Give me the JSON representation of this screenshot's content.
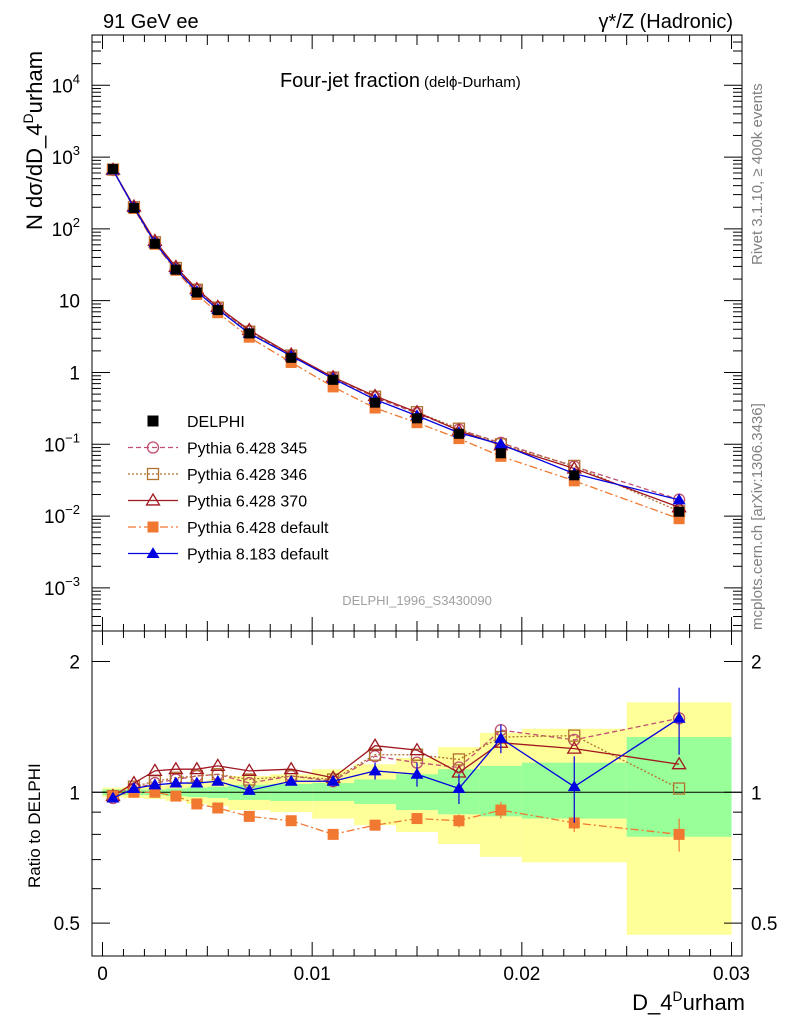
{
  "header": {
    "left": "91 GeV ee",
    "right": "γ*/Z (Hadronic)"
  },
  "title": {
    "main": "Four-jet fraction",
    "sub": "(delϕ-Durham)"
  },
  "side_labels": {
    "rivet": "Rivet 3.1.10, ≥ 400k events",
    "mcplots": "mcplots.cern.ch [arXiv:1306.3436]"
  },
  "watermark": "DELPHI_1996_S3430090",
  "axes": {
    "ylabel_top": "N dσ/dD_4",
    "ylabel_top_sup": "D",
    "ylabel_top_tail": "urham",
    "ylabel_bottom": "Ratio to DELPHI",
    "xlabel": "D_4",
    "xlabel_sup": "D",
    "xlabel_tail": "urham"
  },
  "ticks": {
    "x": [
      {
        "v": 0,
        "label": "0"
      },
      {
        "v": 0.01,
        "label": "0.01"
      },
      {
        "v": 0.02,
        "label": "0.02"
      },
      {
        "v": 0.03,
        "label": "0.03"
      }
    ],
    "y_top": [
      {
        "v": 4,
        "base": "10",
        "sup": "4"
      },
      {
        "v": 3,
        "base": "10",
        "sup": "3"
      },
      {
        "v": 2,
        "base": "10",
        "sup": "2"
      },
      {
        "v": 1,
        "base": "10",
        "sup": ""
      },
      {
        "v": 0,
        "base": "1",
        "sup": ""
      },
      {
        "v": -1,
        "base": "10",
        "sup": "−1"
      },
      {
        "v": -2,
        "base": "10",
        "sup": "−2"
      },
      {
        "v": -3,
        "base": "10",
        "sup": "−3"
      }
    ],
    "y_ratio": [
      {
        "v": 0.5,
        "label": "0.5"
      },
      {
        "v": 1,
        "label": "1"
      },
      {
        "v": 2,
        "label": "2"
      }
    ]
  },
  "legend": [
    {
      "label": "DELPHI"
    },
    {
      "label": "Pythia 6.428 345"
    },
    {
      "label": "Pythia 6.428 346"
    },
    {
      "label": "Pythia 6.428 370"
    },
    {
      "label": "Pythia 6.428 default"
    },
    {
      "label": "Pythia 8.183 default"
    }
  ],
  "chart_data": {
    "type": "line",
    "title": "Four-jet fraction (delϕ-Durham)",
    "xlabel": "D_4^Durham",
    "ylabel": "N dσ/dD_4^Durham",
    "xlim": [
      -0.0005,
      0.0305
    ],
    "ylim_log10": [
      -3.6,
      4.7
    ],
    "ratio_ylim": [
      0.42,
      2.35
    ],
    "x": [
      0.0005,
      0.0015,
      0.0025,
      0.0035,
      0.0045,
      0.0055,
      0.007,
      0.009,
      0.011,
      0.013,
      0.015,
      0.017,
      0.019,
      0.0225,
      0.0275
    ],
    "bin_edges": [
      0,
      0.001,
      0.002,
      0.003,
      0.004,
      0.005,
      0.006,
      0.008,
      0.01,
      0.012,
      0.014,
      0.016,
      0.018,
      0.02,
      0.025,
      0.03
    ],
    "uncertainty_bands": {
      "green_lo": [
        0.985,
        0.985,
        0.985,
        0.98,
        0.975,
        0.97,
        0.96,
        0.955,
        0.955,
        0.94,
        0.91,
        0.89,
        0.88,
        0.87,
        0.79
      ],
      "green_hi": [
        1.015,
        1.015,
        1.015,
        1.02,
        1.025,
        1.03,
        1.04,
        1.045,
        1.05,
        1.07,
        1.1,
        1.13,
        1.15,
        1.17,
        1.34
      ],
      "yellow_lo": [
        0.975,
        0.97,
        0.965,
        0.955,
        0.94,
        0.93,
        0.91,
        0.9,
        0.87,
        0.84,
        0.81,
        0.76,
        0.71,
        0.69,
        0.47
      ],
      "yellow_hi": [
        1.025,
        1.03,
        1.035,
        1.045,
        1.06,
        1.07,
        1.09,
        1.1,
        1.13,
        1.16,
        1.2,
        1.27,
        1.37,
        1.4,
        1.61
      ]
    },
    "series": [
      {
        "name": "DELPHI",
        "color": "#000000",
        "marker": "square-filled",
        "line": "none",
        "values": [
          680,
          195,
          62,
          27,
          13,
          7.4,
          3.5,
          1.6,
          0.79,
          0.38,
          0.23,
          0.14,
          0.075,
          0.037,
          0.0115
        ],
        "ratio": [
          1,
          1,
          1,
          1,
          1,
          1,
          1,
          1,
          1,
          1,
          1,
          1,
          1,
          1,
          1
        ]
      },
      {
        "name": "Pythia 6.428 345",
        "color": "#c05070",
        "marker": "circle-open",
        "line": "dashed",
        "values": [
          660,
          200,
          64,
          28,
          14.3,
          8.0,
          3.8,
          1.7,
          0.85,
          0.45,
          0.27,
          0.16,
          0.105,
          0.049,
          0.017
        ],
        "ratio": [
          0.97,
          1.02,
          1.05,
          1.07,
          1.09,
          1.1,
          1.05,
          1.09,
          1.06,
          1.21,
          1.17,
          1.14,
          1.39,
          1.32,
          1.48
        ]
      },
      {
        "name": "Pythia 6.428 346",
        "color": "#b07030",
        "marker": "square-open",
        "line": "dotted",
        "values": [
          670,
          200,
          65,
          28.5,
          14.2,
          8.0,
          3.7,
          1.72,
          0.85,
          0.46,
          0.28,
          0.165,
          0.1,
          0.05,
          0.0117
        ],
        "ratio": [
          0.98,
          1.03,
          1.06,
          1.08,
          1.09,
          1.1,
          1.07,
          1.09,
          1.07,
          1.22,
          1.22,
          1.19,
          1.34,
          1.35,
          1.02
        ]
      },
      {
        "name": "Pythia 6.428 370",
        "color": "#a01820",
        "marker": "triangle-open",
        "line": "solid",
        "values": [
          665,
          205,
          68,
          29.5,
          14.5,
          8.2,
          3.9,
          1.78,
          0.86,
          0.47,
          0.28,
          0.155,
          0.097,
          0.046,
          0.0133
        ],
        "ratio": [
          0.98,
          1.05,
          1.12,
          1.13,
          1.13,
          1.15,
          1.12,
          1.13,
          1.08,
          1.28,
          1.25,
          1.11,
          1.3,
          1.26,
          1.16
        ]
      },
      {
        "name": "Pythia 6.428 default",
        "color": "#f07830",
        "marker": "square-filled",
        "line": "dashdot",
        "values": [
          665,
          192,
          61,
          26.5,
          12.2,
          6.8,
          3.1,
          1.38,
          0.63,
          0.32,
          0.2,
          0.12,
          0.068,
          0.031,
          0.0092
        ],
        "ratio": [
          0.98,
          1.0,
          1.0,
          0.98,
          0.94,
          0.92,
          0.88,
          0.86,
          0.8,
          0.84,
          0.87,
          0.86,
          0.91,
          0.85,
          0.8
        ],
        "ratio_err": [
          0,
          0,
          0,
          0,
          0,
          0,
          0,
          0,
          0.01,
          0.02,
          0.025,
          0.03,
          0.04,
          0.04,
          0.07
        ]
      },
      {
        "name": "Pythia 8.183 default",
        "color": "#0000e0",
        "marker": "triangle-filled",
        "line": "solid",
        "values": [
          660,
          198,
          64,
          27.5,
          13.4,
          7.6,
          3.5,
          1.7,
          0.82,
          0.42,
          0.25,
          0.145,
          0.1,
          0.039,
          0.0168
        ],
        "ratio": [
          0.97,
          1.02,
          1.04,
          1.05,
          1.05,
          1.06,
          1.01,
          1.06,
          1.06,
          1.12,
          1.1,
          1.02,
          1.33,
          1.03,
          1.48
        ],
        "ratio_err": [
          0,
          0,
          0,
          0,
          0,
          0,
          0.01,
          0.02,
          0.03,
          0.05,
          0.07,
          0.08,
          0.1,
          0.18,
          0.26
        ]
      }
    ]
  }
}
